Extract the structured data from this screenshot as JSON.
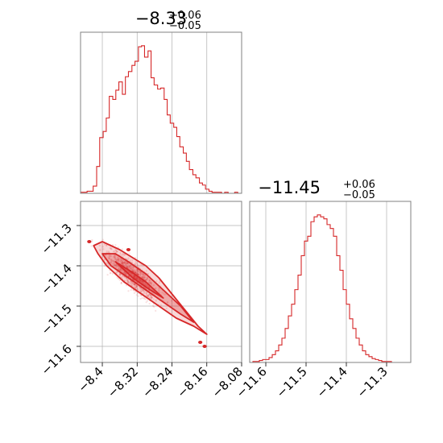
{
  "chart_data": [
    {
      "type": "histogram",
      "panel": "x-marginal",
      "title": {
        "main": "−8.33",
        "upper": "+0.06",
        "lower": "−0.05"
      },
      "xlim": [
        -8.45,
        -8.08
      ],
      "x_ticks": [
        -8.4,
        -8.32,
        -8.24,
        -8.16,
        -8.08
      ],
      "bin_edges": [
        -8.45,
        -8.443,
        -8.435,
        -8.428,
        -8.421,
        -8.413,
        -8.406,
        -8.398,
        -8.391,
        -8.384,
        -8.376,
        -8.369,
        -8.362,
        -8.354,
        -8.347,
        -8.34,
        -8.332,
        -8.325,
        -8.317,
        -8.31,
        -8.303,
        -8.295,
        -8.288,
        -8.281,
        -8.273,
        -8.266,
        -8.258,
        -8.251,
        -8.244,
        -8.236,
        -8.229,
        -8.222,
        -8.214,
        -8.207,
        -8.2,
        -8.192,
        -8.185,
        -8.177,
        -8.17,
        -8.163,
        -8.155,
        -8.148,
        -8.141,
        -8.133,
        -8.126,
        -8.119,
        -8.111,
        -8.104,
        -8.096,
        -8.089,
        -8.08
      ],
      "counts": [
        1,
        1,
        2,
        2,
        7,
        26,
        54,
        60,
        73,
        94,
        91,
        100,
        108,
        96,
        113,
        118,
        124,
        128,
        142,
        143,
        132,
        138,
        112,
        105,
        101,
        102,
        91,
        76,
        68,
        64,
        55,
        45,
        39,
        31,
        23,
        18,
        15,
        10,
        8,
        4,
        2,
        1,
        1,
        1,
        0,
        1,
        0,
        0,
        1,
        0
      ]
    },
    {
      "type": "contour",
      "panel": "2d",
      "xlim": [
        -8.45,
        -8.08
      ],
      "ylim": [
        -11.64,
        -11.24
      ],
      "x_ticks": [
        -8.4,
        -8.32,
        -8.24,
        -8.16,
        -8.08
      ],
      "y_ticks": [
        -11.3,
        -11.4,
        -11.5,
        -11.6
      ],
      "contours": [
        {
          "level": "outer",
          "filled": true,
          "points": [
            [
              -8.42,
              -11.35
            ],
            [
              -8.4,
              -11.34
            ],
            [
              -8.38,
              -11.35
            ],
            [
              -8.36,
              -11.36
            ],
            [
              -8.33,
              -11.38
            ],
            [
              -8.3,
              -11.4
            ],
            [
              -8.27,
              -11.43
            ],
            [
              -8.24,
              -11.47
            ],
            [
              -8.21,
              -11.51
            ],
            [
              -8.18,
              -11.55
            ],
            [
              -8.16,
              -11.57
            ],
            [
              -8.19,
              -11.55
            ],
            [
              -8.23,
              -11.53
            ],
            [
              -8.27,
              -11.5
            ],
            [
              -8.31,
              -11.47
            ],
            [
              -8.35,
              -11.44
            ],
            [
              -8.39,
              -11.4
            ],
            [
              -8.41,
              -11.37
            ]
          ]
        },
        {
          "level": "middle",
          "filled": true,
          "points": [
            [
              -8.4,
              -11.37
            ],
            [
              -8.37,
              -11.37
            ],
            [
              -8.34,
              -11.39
            ],
            [
              -8.3,
              -11.42
            ],
            [
              -8.26,
              -11.46
            ],
            [
              -8.22,
              -11.5
            ],
            [
              -8.19,
              -11.54
            ],
            [
              -8.22,
              -11.52
            ],
            [
              -8.26,
              -11.49
            ],
            [
              -8.3,
              -11.46
            ],
            [
              -8.34,
              -11.43
            ],
            [
              -8.38,
              -11.4
            ]
          ]
        },
        {
          "level": "inner",
          "filled": true,
          "points": [
            [
              -8.37,
              -11.39
            ],
            [
              -8.34,
              -11.41
            ],
            [
              -8.3,
              -11.44
            ],
            [
              -8.26,
              -11.48
            ],
            [
              -8.29,
              -11.46
            ],
            [
              -8.33,
              -11.43
            ]
          ]
        }
      ],
      "islands": [
        [
          -8.43,
          -11.34
        ],
        [
          -8.34,
          -11.36
        ],
        [
          -8.175,
          -11.59
        ],
        [
          -8.165,
          -11.6
        ]
      ],
      "scatter_points": 1100
    },
    {
      "type": "histogram",
      "panel": "y-marginal",
      "title": {
        "main": "−11.45",
        "upper": "+0.06",
        "lower": "−0.05"
      },
      "xlim": [
        -11.64,
        -11.24
      ],
      "x_ticks": [
        -11.6,
        -11.5,
        -11.4,
        -11.3
      ],
      "bin_edges": [
        -11.64,
        -11.632,
        -11.624,
        -11.616,
        -11.608,
        -11.6,
        -11.592,
        -11.584,
        -11.576,
        -11.568,
        -11.56,
        -11.552,
        -11.544,
        -11.536,
        -11.528,
        -11.52,
        -11.512,
        -11.504,
        -11.496,
        -11.488,
        -11.48,
        -11.472,
        -11.464,
        -11.456,
        -11.448,
        -11.44,
        -11.432,
        -11.424,
        -11.416,
        -11.408,
        -11.4,
        -11.392,
        -11.384,
        -11.376,
        -11.368,
        -11.36,
        -11.352,
        -11.344,
        -11.336,
        -11.328,
        -11.32,
        -11.312,
        -11.304,
        -11.296,
        -11.288,
        -11.28,
        -11.272,
        -11.264,
        -11.256,
        -11.248,
        -11.24
      ],
      "counts": [
        0,
        1,
        1,
        2,
        3,
        3,
        5,
        8,
        12,
        18,
        25,
        35,
        48,
        60,
        75,
        90,
        110,
        125,
        130,
        145,
        150,
        152,
        150,
        148,
        142,
        138,
        130,
        110,
        95,
        75,
        60,
        45,
        35,
        25,
        18,
        12,
        8,
        6,
        4,
        3,
        2,
        1,
        1,
        1,
        0,
        0,
        0,
        0,
        0,
        0
      ]
    }
  ],
  "colors": {
    "series": "#d62728",
    "grid": "#b0b0b0",
    "frame": "#808080"
  }
}
